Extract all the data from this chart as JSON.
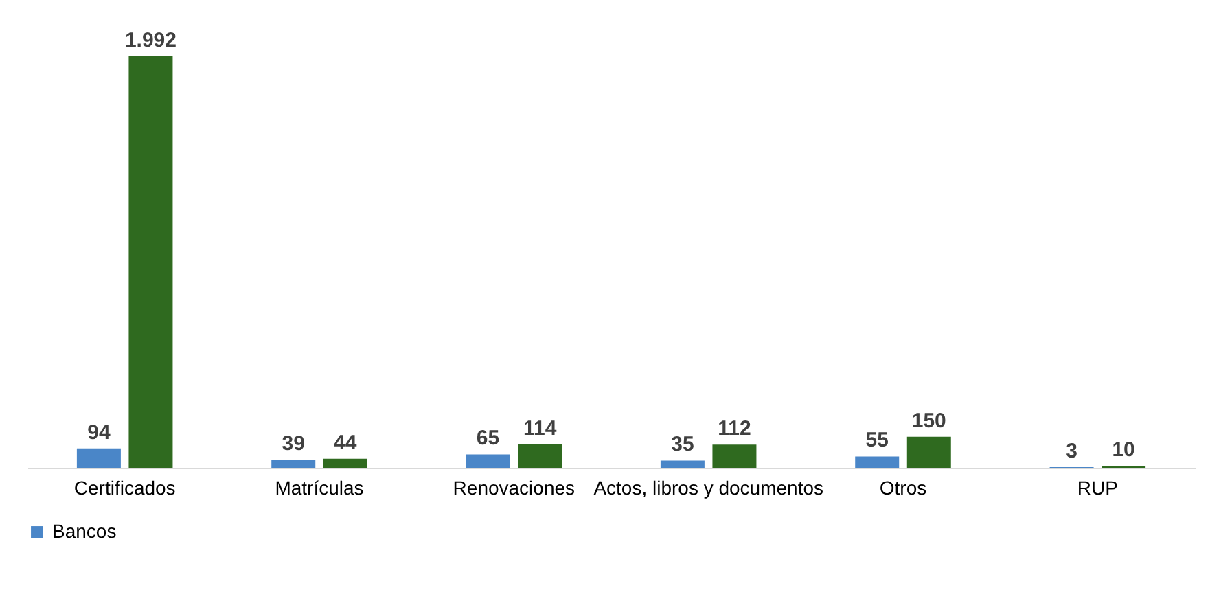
{
  "chart_data": {
    "type": "bar",
    "categories": [
      "Certificados",
      "Matrículas",
      "Renovaciones",
      "Actos, libros y documentos",
      "Otros",
      "RUP"
    ],
    "series": [
      {
        "name": "Bancos",
        "color": "#4a86c8",
        "values": [
          94,
          39,
          65,
          35,
          55,
          3
        ],
        "value_labels": [
          "94",
          "39",
          "65",
          "35",
          "55",
          "3"
        ]
      },
      {
        "color": "#2f6a1f",
        "values": [
          1992,
          44,
          114,
          112,
          150,
          10
        ],
        "value_labels": [
          "1.992",
          "44",
          "114",
          "112",
          "150",
          "10"
        ]
      }
    ],
    "legend": "bottom",
    "grid": false
  }
}
